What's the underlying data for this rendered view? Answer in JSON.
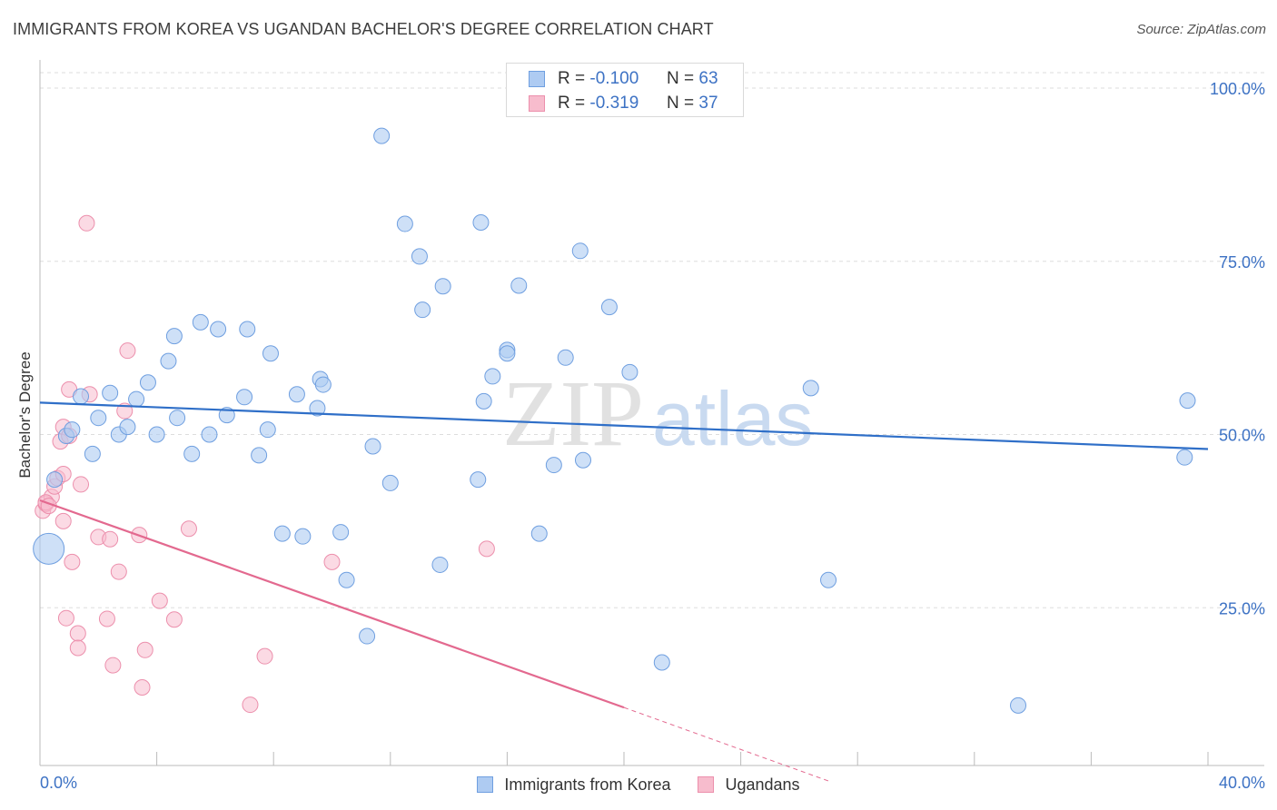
{
  "header": {
    "title": "IMMIGRANTS FROM KOREA VS UGANDAN BACHELOR'S DEGREE CORRELATION CHART",
    "source": "Source: ZipAtlas.com"
  },
  "legend_top": {
    "rows": [
      {
        "r_label": "R =",
        "r_value": "-0.100",
        "n_label": "N =",
        "n_value": "63"
      },
      {
        "r_label": "R =",
        "r_value": "-0.319",
        "n_label": "N =",
        "n_value": "37"
      }
    ]
  },
  "colors": {
    "korea_fill": "#aecbf2",
    "korea_stroke": "#6f9fe0",
    "korea_line": "#2f6fc8",
    "uganda_fill": "#f7bccd",
    "uganda_stroke": "#ec8fac",
    "uganda_line": "#e3698f",
    "axis_text": "#3d72c4",
    "grid": "#dddddd"
  },
  "watermark": {
    "part1": "ZIP",
    "part2": "atlas"
  },
  "chart_data": {
    "type": "scatter",
    "title": "IMMIGRANTS FROM KOREA VS UGANDAN BACHELOR'S DEGREE CORRELATION CHART",
    "xlabel": "",
    "ylabel": "Bachelor's Degree",
    "xlim": [
      0,
      40
    ],
    "ylim": [
      0,
      100
    ],
    "x_tick_labels": [
      "0.0%",
      "40.0%"
    ],
    "y_ticks": [
      25,
      50,
      75,
      100
    ],
    "y_tick_labels": [
      "25.0%",
      "50.0%",
      "75.0%",
      "100.0%"
    ],
    "grid": true,
    "legend_placement": "bottom",
    "series": [
      {
        "name": "Immigrants from Korea",
        "color": "#6f9fe0",
        "r": -0.1,
        "n": 63,
        "trend": {
          "x": [
            0,
            40
          ],
          "y": [
            54.6,
            47.9
          ]
        },
        "points": [
          [
            0.3,
            33.5,
            "big"
          ],
          [
            0.5,
            43.5
          ],
          [
            0.9,
            49.8
          ],
          [
            1.1,
            50.7
          ],
          [
            1.4,
            55.5
          ],
          [
            1.8,
            47.2
          ],
          [
            2.0,
            52.4
          ],
          [
            2.4,
            56.0
          ],
          [
            2.7,
            50.0
          ],
          [
            3.0,
            51.1
          ],
          [
            3.3,
            55.1
          ],
          [
            3.7,
            57.5
          ],
          [
            4.0,
            50.0
          ],
          [
            4.4,
            60.6
          ],
          [
            4.6,
            64.2
          ],
          [
            4.7,
            52.4
          ],
          [
            5.2,
            47.2
          ],
          [
            5.5,
            66.2
          ],
          [
            5.8,
            50.0
          ],
          [
            6.1,
            65.2
          ],
          [
            6.4,
            52.8
          ],
          [
            7.0,
            55.4
          ],
          [
            7.1,
            65.2
          ],
          [
            7.5,
            47.0
          ],
          [
            7.8,
            50.7
          ],
          [
            7.9,
            61.7
          ],
          [
            8.3,
            35.7
          ],
          [
            8.8,
            55.8
          ],
          [
            9.0,
            35.3
          ],
          [
            9.5,
            53.8
          ],
          [
            9.6,
            58.0
          ],
          [
            9.7,
            57.2
          ],
          [
            10.3,
            35.9
          ],
          [
            10.5,
            29.0
          ],
          [
            11.2,
            20.9
          ],
          [
            11.4,
            48.3
          ],
          [
            11.7,
            93.1
          ],
          [
            12.0,
            43.0
          ],
          [
            12.5,
            80.4
          ],
          [
            13.0,
            75.7
          ],
          [
            13.1,
            68.0
          ],
          [
            13.7,
            31.2
          ],
          [
            13.8,
            71.4
          ],
          [
            15.0,
            43.5
          ],
          [
            15.2,
            54.8
          ],
          [
            15.5,
            58.4
          ],
          [
            15.1,
            80.6
          ],
          [
            16.0,
            62.2
          ],
          [
            16.0,
            61.7
          ],
          [
            16.4,
            71.5
          ],
          [
            17.1,
            35.7
          ],
          [
            17.6,
            45.6
          ],
          [
            18.0,
            61.1
          ],
          [
            18.5,
            76.5
          ],
          [
            18.6,
            46.3
          ],
          [
            19.5,
            68.4
          ],
          [
            20.2,
            59.0
          ],
          [
            21.3,
            17.1
          ],
          [
            26.4,
            56.7
          ],
          [
            27.0,
            29.0
          ],
          [
            33.5,
            10.9
          ],
          [
            39.2,
            46.7
          ],
          [
            39.3,
            54.9
          ]
        ]
      },
      {
        "name": "Ugandans",
        "color": "#ec8fac",
        "r": -0.319,
        "n": 37,
        "trend": {
          "x": [
            0,
            20
          ],
          "y": [
            40.5,
            10.6
          ]
        },
        "trend_extension": {
          "x": [
            20,
            27
          ],
          "y": [
            10.6,
            0
          ]
        },
        "points": [
          [
            0.1,
            39.0
          ],
          [
            0.2,
            40.0
          ],
          [
            0.4,
            41.0
          ],
          [
            0.5,
            42.5
          ],
          [
            0.6,
            43.7
          ],
          [
            0.7,
            49.0
          ],
          [
            0.8,
            37.5
          ],
          [
            0.8,
            44.3
          ],
          [
            0.8,
            51.1
          ],
          [
            1.0,
            49.8
          ],
          [
            1.1,
            31.6
          ],
          [
            1.0,
            56.5
          ],
          [
            0.9,
            23.5
          ],
          [
            1.3,
            21.3
          ],
          [
            1.3,
            19.2
          ],
          [
            1.4,
            42.8
          ],
          [
            1.6,
            80.5
          ],
          [
            1.7,
            55.8
          ],
          [
            2.0,
            35.2
          ],
          [
            2.3,
            23.4
          ],
          [
            2.4,
            34.9
          ],
          [
            2.5,
            16.7
          ],
          [
            2.7,
            30.2
          ],
          [
            2.9,
            53.4
          ],
          [
            3.0,
            62.1
          ],
          [
            3.4,
            35.5
          ],
          [
            3.5,
            13.5
          ],
          [
            3.6,
            18.9
          ],
          [
            4.1,
            26.0
          ],
          [
            4.6,
            23.3
          ],
          [
            5.1,
            36.4
          ],
          [
            7.2,
            11.0
          ],
          [
            7.7,
            18.0
          ],
          [
            10.0,
            31.6
          ],
          [
            15.3,
            33.5
          ],
          [
            0.2,
            40.2
          ],
          [
            0.3,
            39.7
          ]
        ]
      }
    ]
  },
  "legend_bottom": {
    "items": [
      {
        "label": "Immigrants from Korea"
      },
      {
        "label": "Ugandans"
      }
    ]
  }
}
